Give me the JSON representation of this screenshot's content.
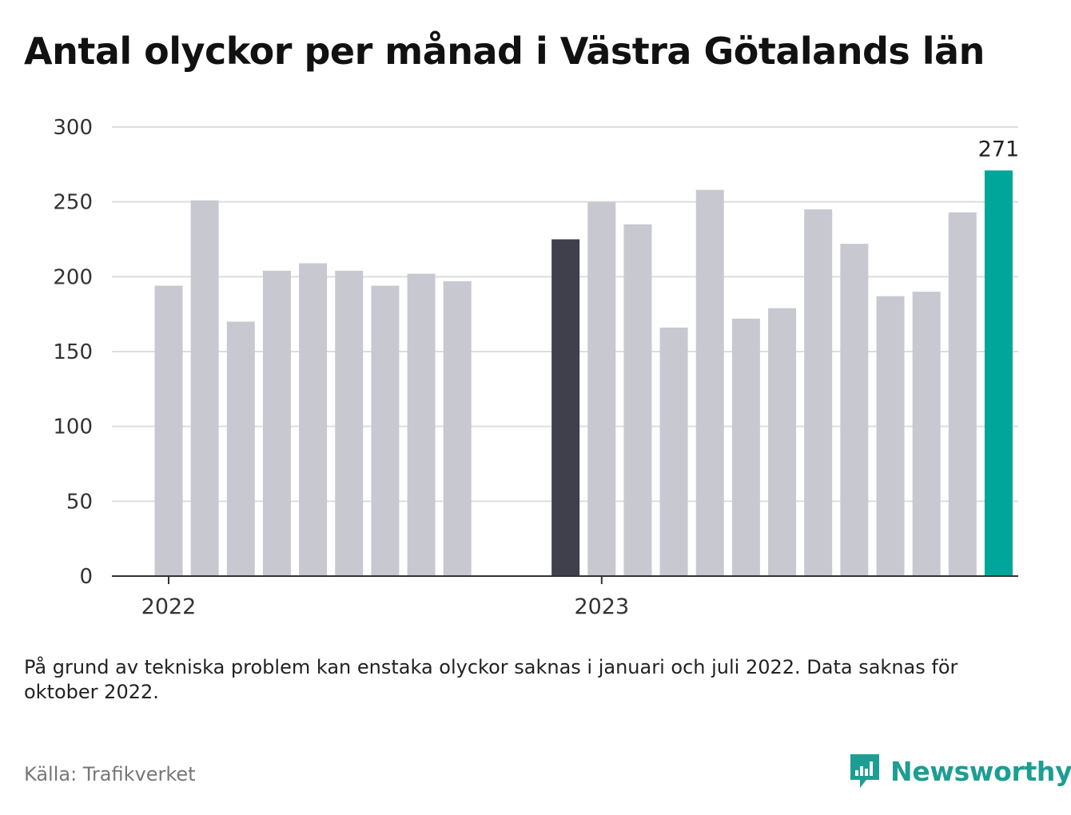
{
  "title": "Antal olyckor per månad i Västra Götalands län",
  "note": "På grund av tekniska problem kan enstaka olyckor saknas i januari och juli 2022. Data saknas för oktober 2022.",
  "source": "Källa: Trafikverket",
  "brand": {
    "name": "Newsworthy",
    "color": "#1d9e92"
  },
  "chart_data": {
    "type": "bar",
    "x_tick_labels": [
      "2022",
      "2023"
    ],
    "y_ticks": [
      0,
      50,
      100,
      150,
      200,
      250,
      300
    ],
    "ylim": [
      0,
      300
    ],
    "grid": true,
    "legend": "none",
    "colors": {
      "default": "#c8c8d0",
      "highlight_previous_year": "#403f4c",
      "highlight_latest": "#00a69a"
    },
    "categories": [
      "2022-01",
      "2022-02",
      "2022-03",
      "2022-04",
      "2022-05",
      "2022-06",
      "2022-07",
      "2022-08",
      "2022-09",
      "2022-10",
      "2022-11",
      "2022-12",
      "2023-01",
      "2023-02",
      "2023-03",
      "2023-04",
      "2023-05",
      "2023-06",
      "2023-07",
      "2023-08",
      "2023-09",
      "2023-10",
      "2023-11",
      "2023-12"
    ],
    "values": [
      194,
      251,
      170,
      204,
      209,
      204,
      194,
      202,
      197,
      null,
      null,
      225,
      250,
      235,
      166,
      258,
      172,
      179,
      245,
      222,
      187,
      190,
      243,
      271
    ],
    "highlight": {
      "2022-12": "highlight_previous_year",
      "2023-12": "highlight_latest"
    },
    "data_labels": [
      {
        "category": "2023-12",
        "text": "271"
      }
    ]
  }
}
